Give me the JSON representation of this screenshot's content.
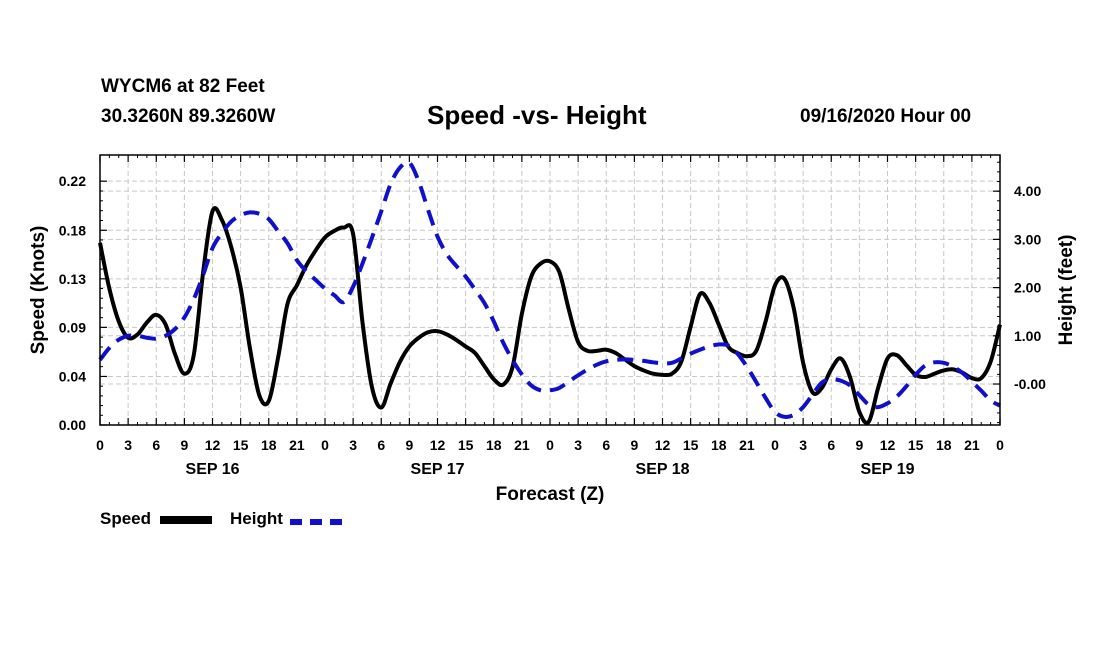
{
  "header": {
    "station": "WYCM6 at 82 Feet",
    "coords": "30.3260N 89.3260W",
    "title": "Speed -vs- Height",
    "date": "09/16/2020 Hour 00"
  },
  "legend": {
    "speed_label": "Speed",
    "height_label": "Height"
  },
  "colors": {
    "speed": "#000000",
    "height": "#1010cc",
    "grid": "#c8c8c8"
  },
  "chart_data": {
    "type": "line",
    "title": "Speed -vs- Height",
    "xlabel": "Forecast (Z)",
    "ylabel": "Speed (Knots)",
    "y2label": "Height (feet)",
    "xlim": [
      0,
      96
    ],
    "ylim": [
      0,
      0.2475
    ],
    "y2lim": [
      -0.85,
      4.75
    ],
    "grid": true,
    "x_tick_values": [
      0,
      3,
      6,
      9,
      12,
      15,
      18,
      21,
      24,
      27,
      30,
      33,
      36,
      39,
      42,
      45,
      48,
      51,
      54,
      57,
      60,
      63,
      66,
      69,
      72,
      75,
      78,
      81,
      84,
      87,
      90,
      93,
      96
    ],
    "x_tick_labels": [
      "0",
      "3",
      "6",
      "9",
      "12",
      "15",
      "18",
      "21",
      "0",
      "3",
      "6",
      "9",
      "12",
      "15",
      "18",
      "21",
      "0",
      "3",
      "6",
      "9",
      "12",
      "15",
      "18",
      "21",
      "0",
      "3",
      "6",
      "9",
      "12",
      "15",
      "18",
      "21",
      "0"
    ],
    "date_labels": [
      {
        "label": "SEP 16",
        "x": 12
      },
      {
        "label": "SEP 17",
        "x": 36
      },
      {
        "label": "SEP 18",
        "x": 60
      },
      {
        "label": "SEP 19",
        "x": 84
      }
    ],
    "y_ticks": [
      {
        "value": 0.0,
        "label": "0.00"
      },
      {
        "value": 0.0445,
        "label": "0.04"
      },
      {
        "value": 0.0895,
        "label": "0.09"
      },
      {
        "value": 0.134,
        "label": "0.13"
      },
      {
        "value": 0.1785,
        "label": "0.18"
      },
      {
        "value": 0.2235,
        "label": "0.22"
      }
    ],
    "y2_ticks": [
      {
        "value": 0.0,
        "label": "-0.00"
      },
      {
        "value": 1.0,
        "label": "1.00"
      },
      {
        "value": 2.0,
        "label": "2.00"
      },
      {
        "value": 3.0,
        "label": "3.00"
      },
      {
        "value": 4.0,
        "label": "4.00"
      }
    ],
    "series": [
      {
        "name": "Speed",
        "axis": "left",
        "x": [
          0,
          1,
          2,
          3,
          4,
          5,
          6,
          7,
          8,
          9,
          10,
          11,
          12,
          13,
          14,
          15,
          16,
          17,
          18,
          19,
          20,
          21,
          22,
          23,
          24,
          25,
          26,
          27,
          28,
          29,
          30,
          31,
          32,
          33,
          34,
          35,
          36,
          37,
          38,
          39,
          40,
          41,
          42,
          43,
          44,
          45,
          46,
          47,
          48,
          49,
          50,
          51,
          52,
          53,
          54,
          55,
          56,
          57,
          58,
          59,
          60,
          61,
          62,
          63,
          64,
          65,
          66,
          67,
          68,
          69,
          70,
          71,
          72,
          73,
          74,
          75,
          76,
          77,
          78,
          79,
          80,
          81,
          82,
          83,
          84,
          85,
          86,
          87,
          88,
          89,
          90,
          91,
          92,
          93,
          94,
          95,
          96
        ],
        "values": [
          0.167,
          0.125,
          0.095,
          0.08,
          0.083,
          0.094,
          0.101,
          0.092,
          0.065,
          0.047,
          0.064,
          0.14,
          0.196,
          0.188,
          0.163,
          0.126,
          0.07,
          0.027,
          0.022,
          0.062,
          0.111,
          0.128,
          0.146,
          0.16,
          0.172,
          0.178,
          0.181,
          0.175,
          0.094,
          0.035,
          0.016,
          0.038,
          0.058,
          0.072,
          0.08,
          0.085,
          0.086,
          0.083,
          0.078,
          0.072,
          0.066,
          0.054,
          0.042,
          0.037,
          0.053,
          0.102,
          0.136,
          0.148,
          0.15,
          0.14,
          0.106,
          0.076,
          0.068,
          0.068,
          0.069,
          0.066,
          0.06,
          0.054,
          0.05,
          0.047,
          0.046,
          0.047,
          0.058,
          0.09,
          0.12,
          0.112,
          0.092,
          0.072,
          0.066,
          0.063,
          0.068,
          0.095,
          0.128,
          0.134,
          0.107,
          0.057,
          0.03,
          0.034,
          0.051,
          0.061,
          0.044,
          0.012,
          0.003,
          0.034,
          0.061,
          0.064,
          0.055,
          0.046,
          0.044,
          0.047,
          0.05,
          0.051,
          0.048,
          0.043,
          0.043,
          0.058,
          0.092
        ]
      },
      {
        "name": "Height",
        "axis": "right",
        "x": [
          0,
          1,
          2,
          3,
          4,
          5,
          6,
          7,
          8,
          9,
          10,
          11,
          12,
          13,
          14,
          15,
          16,
          17,
          18,
          19,
          20,
          21,
          22,
          23,
          24,
          25,
          26,
          27,
          28,
          29,
          30,
          31,
          32,
          33,
          34,
          35,
          36,
          37,
          38,
          39,
          40,
          41,
          42,
          43,
          44,
          45,
          46,
          47,
          48,
          49,
          50,
          51,
          52,
          53,
          54,
          55,
          56,
          57,
          58,
          59,
          60,
          61,
          62,
          63,
          64,
          65,
          66,
          67,
          68,
          69,
          70,
          71,
          72,
          73,
          74,
          75,
          76,
          77,
          78,
          79,
          80,
          81,
          82,
          83,
          84,
          85,
          86,
          87,
          88,
          89,
          90,
          91,
          92,
          93,
          94,
          95,
          96
        ],
        "values": [
          0.5,
          0.75,
          0.92,
          1.0,
          1.0,
          0.96,
          0.94,
          1.0,
          1.14,
          1.38,
          1.76,
          2.26,
          2.82,
          3.13,
          3.37,
          3.5,
          3.56,
          3.53,
          3.42,
          3.17,
          2.92,
          2.57,
          2.34,
          2.16,
          1.98,
          1.84,
          1.7,
          2.02,
          2.5,
          3.03,
          3.58,
          4.15,
          4.49,
          4.59,
          4.2,
          3.61,
          3.06,
          2.69,
          2.45,
          2.23,
          1.96,
          1.68,
          1.3,
          0.86,
          0.5,
          0.2,
          -0.03,
          -0.13,
          -0.13,
          -0.08,
          0.05,
          0.18,
          0.3,
          0.4,
          0.47,
          0.5,
          0.51,
          0.5,
          0.48,
          0.45,
          0.43,
          0.44,
          0.53,
          0.63,
          0.71,
          0.78,
          0.82,
          0.8,
          0.63,
          0.36,
          0.04,
          -0.29,
          -0.58,
          -0.68,
          -0.64,
          -0.48,
          -0.22,
          0.03,
          0.1,
          0.07,
          -0.03,
          -0.23,
          -0.43,
          -0.48,
          -0.4,
          -0.26,
          -0.05,
          0.19,
          0.38,
          0.45,
          0.44,
          0.36,
          0.23,
          0.05,
          -0.14,
          -0.34,
          -0.45
        ]
      }
    ]
  }
}
